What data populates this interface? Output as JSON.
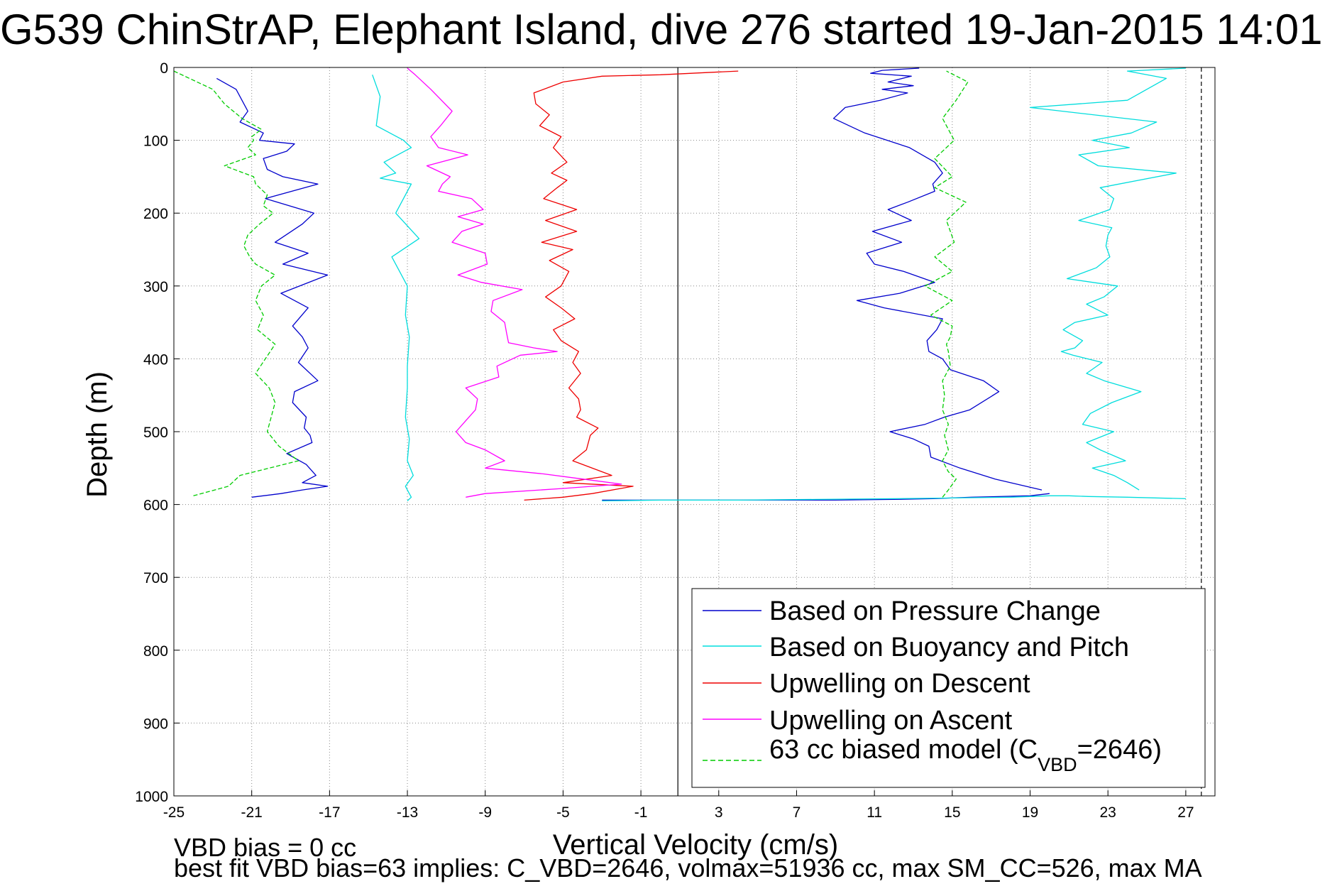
{
  "chart_data": {
    "type": "line",
    "title": "G539 ChinStrAP, Elephant Island, dive 276 started 19-Jan-2015 14:01",
    "xlabel": "Vertical Velocity (cm/s)",
    "ylabel": "Depth (m)",
    "xlim": [
      -25,
      28.5
    ],
    "ylim": [
      0,
      1000
    ],
    "y_reversed": true,
    "grid": true,
    "x_ticks": [
      -25,
      -21,
      -17,
      -13,
      -9,
      -5,
      -1,
      3,
      7,
      11,
      15,
      19,
      23,
      27
    ],
    "y_ticks": [
      0,
      100,
      200,
      300,
      400,
      500,
      600,
      700,
      800,
      900,
      1000
    ],
    "reference_lines": [
      {
        "x": 0.9,
        "style": "solid",
        "color": "#000000"
      },
      {
        "x": 27.8,
        "style": "dashed",
        "color": "#000000"
      }
    ],
    "legend_position": "lower-right",
    "series": [
      {
        "name": "Based on Pressure Change",
        "color": "#0000cc",
        "style": "solid",
        "segments": [
          {
            "x": [
              -22.8,
              -21.8,
              -21.2,
              -21.6,
              -20.4,
              -20.6,
              -18.8,
              -19.2,
              -20.4,
              -20.2,
              -19.4,
              -17.6,
              -20.3,
              -17.8,
              -18.4,
              -19.8,
              -18.1,
              -19.4,
              -17.1,
              -19.5,
              -18.1,
              -18.9,
              -18.4,
              -18.1,
              -18.6,
              -17.6,
              -18.8,
              -18.9,
              -18.2,
              -18.3,
              -18.0,
              -17.9,
              -19.2,
              -18.2,
              -17.7,
              -18.4,
              -17.1,
              -18.4,
              -19.5,
              -21.0
            ],
            "y": [
              15,
              30,
              60,
              75,
              90,
              100,
              105,
              115,
              125,
              140,
              150,
              160,
              180,
              200,
              215,
              240,
              255,
              270,
              285,
              310,
              330,
              355,
              370,
              385,
              405,
              430,
              445,
              460,
              480,
              495,
              505,
              515,
              530,
              545,
              560,
              570,
              575,
              580,
              585,
              590
            ]
          },
          {
            "x": [
              -3.0,
              3.0,
              9.0,
              12.0,
              14.0,
              16.0,
              19.0,
              20.0
            ],
            "y": [
              594,
              594,
              594,
              593,
              592,
              590,
              588,
              585
            ]
          },
          {
            "x": [
              19.6,
              17.2,
              15.4,
              13.9,
              13.8,
              13.0,
              11.8,
              13.6,
              14.6,
              15.9,
              17.4,
              16.6,
              14.9,
              14.5,
              13.8,
              13.7,
              14.2,
              14.5,
              11.5,
              10.1,
              12.3,
              14.1,
              12.5,
              11.0,
              10.6,
              12.4,
              10.9,
              12.9,
              11.7,
              12.7,
              14.1,
              14.0,
              14.5,
              14.1,
              12.8,
              10.5,
              8.9,
              9.5,
              11.3,
              12.7,
              11.4,
              13.0,
              11.7,
              12.9,
              10.8,
              11.4,
              13.3
            ],
            "y": [
              580,
              565,
              550,
              535,
              520,
              510,
              500,
              490,
              480,
              470,
              445,
              430,
              415,
              400,
              390,
              375,
              360,
              345,
              330,
              320,
              310,
              295,
              280,
              270,
              255,
              240,
              225,
              210,
              195,
              185,
              170,
              160,
              145,
              130,
              110,
              90,
              70,
              55,
              45,
              35,
              30,
              25,
              20,
              12,
              8,
              4,
              1
            ]
          }
        ]
      },
      {
        "name": "Based on Buoyancy and Pitch",
        "color": "#00dddd",
        "style": "solid",
        "segments": [
          {
            "x": [
              -14.8,
              -14.4,
              -14.6,
              -13.2,
              -12.8,
              -14.2,
              -13.6,
              -14.4,
              -12.8,
              -13.6,
              -12.4,
              -13.8,
              -13.0,
              -13.1,
              -12.9,
              -13.0,
              -13.0,
              -13.1,
              -12.9,
              -13.0,
              -12.7,
              -13.1,
              -13.0,
              -12.8,
              -13.0
            ],
            "y": [
              10,
              40,
              80,
              100,
              110,
              130,
              145,
              152,
              160,
              200,
              235,
              260,
              300,
              340,
              370,
              410,
              440,
              480,
              510,
              540,
              560,
              575,
              580,
              590,
              595
            ]
          },
          {
            "x": [
              27.0,
              24.0,
              22.0,
              21.0,
              20.0,
              19.0,
              18.0,
              15.0,
              12.0,
              8.0,
              4.0,
              0.0,
              -3.0
            ],
            "y": [
              592,
              590,
              589,
              588,
              588,
              589,
              590,
              591,
              592,
              593,
              594,
              594,
              595
            ]
          },
          {
            "x": [
              24.6,
              24.0,
              23.3,
              22.2,
              23.9,
              22.6,
              21.9,
              23.3,
              21.7,
              22.1,
              23.2,
              24.7,
              22.8,
              21.9,
              22.7,
              21.2,
              20.6,
              21.3,
              21.7,
              20.7,
              21.3,
              23.0,
              21.9,
              22.8,
              23.5,
              20.9,
              22.4,
              23.1,
              22.9,
              23.0,
              23.2,
              21.5,
              23.1,
              23.3,
              22.6,
              26.5,
              22.5,
              21.5,
              24.1,
              22.2,
              24.2,
              25.5,
              19.0,
              24.0,
              25.0,
              26.0,
              24.0,
              27.0
            ],
            "y": [
              580,
              570,
              560,
              550,
              540,
              525,
              515,
              500,
              490,
              475,
              460,
              445,
              430,
              420,
              405,
              395,
              390,
              385,
              375,
              360,
              350,
              340,
              325,
              315,
              300,
              290,
              275,
              260,
              245,
              230,
              220,
              210,
              195,
              180,
              165,
              145,
              135,
              120,
              110,
              100,
              90,
              75,
              55,
              45,
              30,
              15,
              5,
              1
            ]
          }
        ]
      },
      {
        "name": "Upwelling on Descent",
        "color": "#ee0000",
        "style": "solid",
        "segments": [
          {
            "x": [
              4.0,
              0.0,
              -3.0,
              -5.0,
              -6.5,
              -6.4,
              -5.7,
              -6.2,
              -5.1,
              -5.5,
              -4.8,
              -5.6,
              -4.8,
              -5.3,
              -6.0,
              -4.3,
              -5.9,
              -4.3,
              -6.1,
              -4.5,
              -5.7,
              -4.7,
              -5.1,
              -5.9,
              -5.1,
              -4.4,
              -5.5,
              -5.1,
              -4.2,
              -4.5,
              -4.1,
              -4.7,
              -4.2,
              -4.1,
              -4.3,
              -3.2,
              -3.6,
              -3.8,
              -4.5,
              -2.5,
              -5.0,
              -1.4,
              -3.5,
              -5.0,
              -7.0
            ],
            "y": [
              5,
              10,
              12,
              20,
              35,
              50,
              65,
              80,
              95,
              110,
              130,
              145,
              155,
              165,
              180,
              195,
              210,
              225,
              240,
              250,
              265,
              280,
              300,
              315,
              330,
              345,
              360,
              375,
              390,
              405,
              420,
              440,
              455,
              470,
              480,
              495,
              505,
              525,
              540,
              560,
              570,
              575,
              585,
              590,
              594
            ]
          }
        ]
      },
      {
        "name": "Upwelling on Ascent",
        "color": "#ff00ff",
        "style": "solid",
        "segments": [
          {
            "x": [
              -10.0,
              -9.0,
              -5.0,
              -2.0,
              -4.0,
              -6.0,
              -9.0,
              -8.0,
              -9.0,
              -10.0,
              -10.5,
              -10.0,
              -9.5,
              -9.4,
              -10.0,
              -8.3,
              -8.4,
              -7.2,
              -5.3,
              -6.5,
              -7.8,
              -7.9,
              -8.0,
              -8.7,
              -8.6,
              -7.1,
              -9.2,
              -10.4,
              -8.9,
              -9.0,
              -10.7,
              -10.2,
              -9.1,
              -10.4,
              -9.1,
              -9.7,
              -11.4,
              -11.2,
              -10.8,
              -12.0,
              -9.9,
              -11.4,
              -11.8,
              -11.3,
              -10.7,
              -11.8,
              -12.6,
              -13.0
            ],
            "y": [
              590,
              585,
              578,
              572,
              565,
              558,
              550,
              540,
              525,
              515,
              500,
              485,
              470,
              455,
              440,
              425,
              410,
              395,
              390,
              385,
              378,
              365,
              350,
              335,
              320,
              305,
              295,
              285,
              270,
              255,
              240,
              225,
              215,
              205,
              195,
              180,
              170,
              160,
              150,
              135,
              120,
              110,
              95,
              80,
              60,
              30,
              10,
              1
            ]
          }
        ]
      },
      {
        "name": "63 cc biased model (C_VBD=2646)",
        "legend_label": "63 cc biased model (C",
        "legend_sub": "VBD",
        "legend_suffix": "=2646)",
        "color": "#00cc00",
        "style": "dashed",
        "segments": [
          {
            "x": [
              -25.0,
              -24.2,
              -23.0,
              -22.4,
              -21.5,
              -20.5,
              -21.0,
              -20.9,
              -21.2,
              -20.8,
              -22.4,
              -20.9,
              -20.8,
              -20.2,
              -20.4,
              -19.9,
              -20.6,
              -21.2,
              -21.4,
              -21.1,
              -20.8,
              -19.8,
              -20.5,
              -20.8,
              -20.4,
              -20.7,
              -19.8,
              -20.3,
              -20.8,
              -20.1,
              -19.8,
              -20.0,
              -20.2,
              -19.6,
              -18.6,
              -21.6,
              -22.2,
              -24.0
            ],
            "y": [
              5,
              15,
              30,
              50,
              70,
              85,
              95,
              100,
              110,
              120,
              135,
              150,
              160,
              175,
              190,
              200,
              215,
              230,
              245,
              260,
              270,
              285,
              300,
              320,
              340,
              360,
              380,
              400,
              420,
              440,
              460,
              480,
              500,
              520,
              540,
              560,
              575,
              588
            ]
          },
          {
            "x": [
              14.5,
              14.8,
              15.2,
              14.8,
              14.5,
              14.8,
              14.6,
              14.8,
              14.5,
              14.6,
              14.5,
              14.9,
              14.8,
              14.7,
              14.9,
              15.0,
              13.9,
              15.0,
              13.6,
              15.0,
              14.1,
              15.1,
              14.7,
              15.7,
              14.1,
              15.0,
              14.1,
              15.1,
              14.5,
              15.2,
              15.8,
              14.7
            ],
            "y": [
              590,
              580,
              565,
              555,
              540,
              525,
              505,
              490,
              470,
              450,
              430,
              410,
              390,
              380,
              370,
              355,
              340,
              320,
              300,
              280,
              260,
              240,
              210,
              185,
              165,
              150,
              125,
              100,
              70,
              45,
              20,
              5
            ]
          }
        ]
      }
    ],
    "annotations": [
      "VBD bias = 0 cc",
      "best fit VBD bias=63 implies: C_VBD=2646, volmax=51936 cc, max SM_CC=526, max MA"
    ]
  }
}
